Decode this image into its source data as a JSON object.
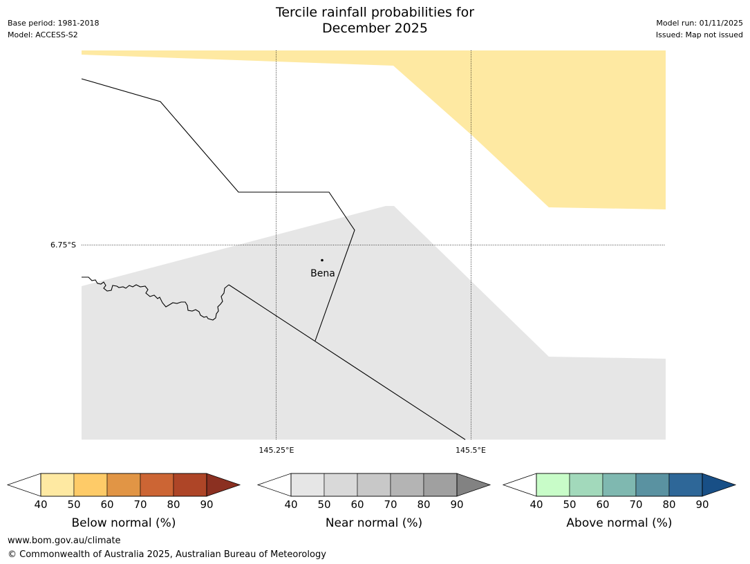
{
  "title": "Tercile rainfall probabilities for\nDecember 2025",
  "meta": {
    "base_period": "Base period: 1981-2018",
    "model": "Model: ACCESS-S2",
    "model_run": "Model run: 01/11/2025",
    "issued": "Issued: Map not issued"
  },
  "map": {
    "lat_label": "6.75°S",
    "lon_labels": [
      "145.25°E",
      "145.5°E"
    ],
    "place": {
      "name": "Bena"
    },
    "colors": {
      "below_region": "#fee9a2",
      "near_region": "#e6e6e6",
      "border": "#000000"
    }
  },
  "legends": [
    {
      "title": "Below normal (%)",
      "ticks": [
        "40",
        "50",
        "60",
        "70",
        "80",
        "90"
      ],
      "colors": [
        "#ffffff",
        "#fee9a2",
        "#fecb68",
        "#e19545",
        "#cc6534",
        "#ae4527",
        "#8b3021"
      ]
    },
    {
      "title": "Near normal (%)",
      "ticks": [
        "40",
        "50",
        "60",
        "70",
        "80",
        "90"
      ],
      "colors": [
        "#ffffff",
        "#e6e6e6",
        "#d9d9d9",
        "#c8c8c8",
        "#b4b4b4",
        "#a0a0a0",
        "#828282"
      ]
    },
    {
      "title": "Above normal (%)",
      "ticks": [
        "40",
        "50",
        "60",
        "70",
        "80",
        "90"
      ],
      "colors": [
        "#ffffff",
        "#c8fcc8",
        "#a2d9bb",
        "#7fb8b0",
        "#5a92a1",
        "#2e6798",
        "#184f86"
      ]
    }
  ],
  "footer": {
    "url": "www.bom.gov.au/climate",
    "copyright": "© Commonwealth of Australia 2025, Australian Bureau of Meteorology"
  }
}
